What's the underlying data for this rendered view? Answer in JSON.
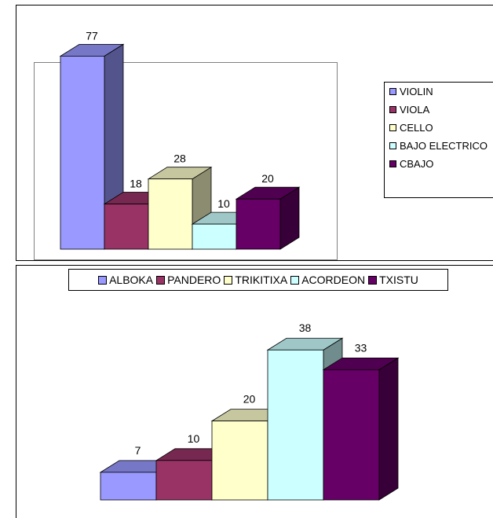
{
  "chart_data": [
    {
      "type": "bar",
      "style": "3d",
      "categories": [
        "VIOLIN",
        "VIOLA",
        "CELLO",
        "BAJO ELECTRICO",
        "CBAJO"
      ],
      "values": [
        77,
        18,
        28,
        10,
        20
      ],
      "legend_labels": [
        "VIOLIN",
        "VIOLA",
        "CELLO",
        "BAJO ELECTRICO",
        "CBAJO"
      ],
      "colors": [
        "#9999ff",
        "#993366",
        "#ffffcc",
        "#ccffff",
        "#660066"
      ],
      "legend_position": "right",
      "grid": false
    },
    {
      "type": "bar",
      "style": "3d",
      "categories": [
        "ALBOKA",
        "PANDERO",
        "TRIKITIXA",
        "ACORDEON",
        "TXISTU"
      ],
      "values": [
        7,
        10,
        20,
        38,
        33
      ],
      "legend_labels": [
        "ALBOKA",
        "PANDERO",
        "TRIKITIXA",
        "ACORDEON",
        "TXISTU"
      ],
      "colors": [
        "#9999ff",
        "#993366",
        "#ffffcc",
        "#ccffff",
        "#660066"
      ],
      "legend_position": "top",
      "grid": false
    }
  ]
}
